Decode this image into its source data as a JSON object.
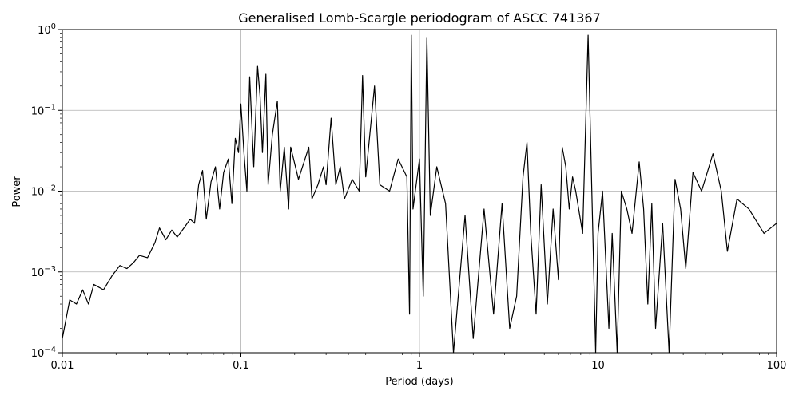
{
  "chart_data": {
    "type": "line",
    "title": "Generalised Lomb-Scargle periodogram of ASCC 741367",
    "xlabel": "Period (days)",
    "ylabel": "Power",
    "xscale": "log",
    "yscale": "log",
    "xlim": [
      0.01,
      100
    ],
    "ylim": [
      0.0001,
      1
    ],
    "grid": true,
    "line_color": "#000000",
    "x_ticks": [
      {
        "value": 0.01,
        "label": "0.01"
      },
      {
        "value": 0.1,
        "label": "0.1"
      },
      {
        "value": 1,
        "label": "1"
      },
      {
        "value": 10,
        "label": "10"
      },
      {
        "value": 100,
        "label": "100"
      }
    ],
    "y_ticks": [
      {
        "value": 0.0001,
        "base": "10",
        "exp": "−4"
      },
      {
        "value": 0.001,
        "base": "10",
        "exp": "−3"
      },
      {
        "value": 0.01,
        "base": "10",
        "exp": "−2"
      },
      {
        "value": 0.1,
        "base": "10",
        "exp": "−1"
      },
      {
        "value": 1,
        "base": "10",
        "exp": "0"
      }
    ],
    "series": [
      {
        "values": [
          [
            0.01,
            0.00015
          ],
          [
            0.011,
            0.00045
          ],
          [
            0.012,
            0.0004
          ],
          [
            0.013,
            0.0006
          ],
          [
            0.014,
            0.0004
          ],
          [
            0.015,
            0.0007
          ],
          [
            0.017,
            0.0006
          ],
          [
            0.019,
            0.0009
          ],
          [
            0.021,
            0.0012
          ],
          [
            0.023,
            0.0011
          ],
          [
            0.025,
            0.0013
          ],
          [
            0.027,
            0.0016
          ],
          [
            0.03,
            0.0015
          ],
          [
            0.033,
            0.0023
          ],
          [
            0.035,
            0.0035
          ],
          [
            0.038,
            0.0025
          ],
          [
            0.041,
            0.0033
          ],
          [
            0.044,
            0.0027
          ],
          [
            0.048,
            0.0035
          ],
          [
            0.052,
            0.0045
          ],
          [
            0.055,
            0.004
          ],
          [
            0.058,
            0.012
          ],
          [
            0.061,
            0.018
          ],
          [
            0.064,
            0.0045
          ],
          [
            0.068,
            0.013
          ],
          [
            0.072,
            0.02
          ],
          [
            0.076,
            0.006
          ],
          [
            0.08,
            0.017
          ],
          [
            0.085,
            0.025
          ],
          [
            0.089,
            0.007
          ],
          [
            0.093,
            0.045
          ],
          [
            0.097,
            0.03
          ],
          [
            0.1,
            0.12
          ],
          [
            0.104,
            0.03
          ],
          [
            0.108,
            0.01
          ],
          [
            0.112,
            0.26
          ],
          [
            0.118,
            0.02
          ],
          [
            0.124,
            0.35
          ],
          [
            0.128,
            0.15
          ],
          [
            0.132,
            0.03
          ],
          [
            0.138,
            0.28
          ],
          [
            0.142,
            0.012
          ],
          [
            0.15,
            0.05
          ],
          [
            0.16,
            0.13
          ],
          [
            0.166,
            0.01
          ],
          [
            0.175,
            0.035
          ],
          [
            0.185,
            0.006
          ],
          [
            0.19,
            0.035
          ],
          [
            0.21,
            0.014
          ],
          [
            0.24,
            0.035
          ],
          [
            0.25,
            0.008
          ],
          [
            0.27,
            0.012
          ],
          [
            0.29,
            0.02
          ],
          [
            0.3,
            0.012
          ],
          [
            0.32,
            0.08
          ],
          [
            0.34,
            0.012
          ],
          [
            0.36,
            0.02
          ],
          [
            0.38,
            0.008
          ],
          [
            0.42,
            0.014
          ],
          [
            0.46,
            0.01
          ],
          [
            0.48,
            0.27
          ],
          [
            0.5,
            0.015
          ],
          [
            0.56,
            0.2
          ],
          [
            0.6,
            0.012
          ],
          [
            0.68,
            0.01
          ],
          [
            0.76,
            0.025
          ],
          [
            0.85,
            0.015
          ],
          [
            0.88,
            0.0003
          ],
          [
            0.9,
            0.85
          ],
          [
            0.92,
            0.006
          ],
          [
            1.0,
            0.025
          ],
          [
            1.05,
            0.0005
          ],
          [
            1.1,
            0.8
          ],
          [
            1.15,
            0.005
          ],
          [
            1.25,
            0.02
          ],
          [
            1.4,
            0.007
          ],
          [
            1.55,
            0.0001
          ],
          [
            1.8,
            0.005
          ],
          [
            2.0,
            0.00015
          ],
          [
            2.3,
            0.006
          ],
          [
            2.6,
            0.0003
          ],
          [
            2.9,
            0.007
          ],
          [
            3.2,
            0.0002
          ],
          [
            3.5,
            0.0005
          ],
          [
            3.8,
            0.015
          ],
          [
            4.0,
            0.04
          ],
          [
            4.2,
            0.003
          ],
          [
            4.5,
            0.0003
          ],
          [
            4.8,
            0.012
          ],
          [
            5.2,
            0.0004
          ],
          [
            5.6,
            0.006
          ],
          [
            6.0,
            0.0008
          ],
          [
            6.3,
            0.035
          ],
          [
            6.6,
            0.02
          ],
          [
            6.9,
            0.006
          ],
          [
            7.2,
            0.015
          ],
          [
            7.5,
            0.01
          ],
          [
            8.2,
            0.003
          ],
          [
            8.8,
            0.85
          ],
          [
            9.3,
            0.005
          ],
          [
            9.7,
            0.0001
          ],
          [
            10.0,
            0.003
          ],
          [
            10.6,
            0.01
          ],
          [
            11.5,
            0.0002
          ],
          [
            12.0,
            0.003
          ],
          [
            12.8,
            0.0001
          ],
          [
            13.5,
            0.01
          ],
          [
            14.5,
            0.006
          ],
          [
            15.5,
            0.003
          ],
          [
            17.0,
            0.023
          ],
          [
            18.0,
            0.006
          ],
          [
            19.0,
            0.0004
          ],
          [
            20.0,
            0.007
          ],
          [
            21.0,
            0.0002
          ],
          [
            23.0,
            0.004
          ],
          [
            25.0,
            0.0001
          ],
          [
            27.0,
            0.014
          ],
          [
            29.0,
            0.006
          ],
          [
            31.0,
            0.0011
          ],
          [
            34.0,
            0.017
          ],
          [
            38.0,
            0.01
          ],
          [
            44.0,
            0.029
          ],
          [
            49.0,
            0.01
          ],
          [
            53.0,
            0.0018
          ],
          [
            60.0,
            0.008
          ],
          [
            70.0,
            0.006
          ],
          [
            85.0,
            0.003
          ],
          [
            100.0,
            0.004
          ]
        ]
      }
    ]
  }
}
